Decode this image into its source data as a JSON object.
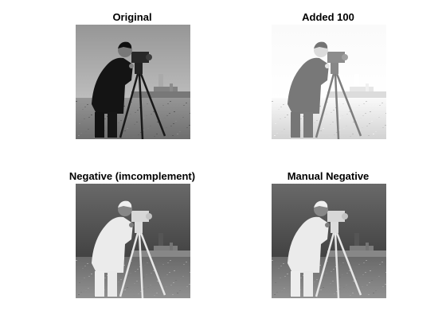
{
  "figure": {
    "panels": [
      {
        "id": "original",
        "title": "Original",
        "variant": "original"
      },
      {
        "id": "added-100",
        "title": "Added 100",
        "variant": "added"
      },
      {
        "id": "negative-imcomplement",
        "title": "Negative (imcomplement)",
        "variant": "negative"
      },
      {
        "id": "manual-negative",
        "title": "Manual Negative",
        "variant": "negative"
      }
    ]
  },
  "colors": {
    "background": "#ffffff",
    "title_text": "#000000"
  }
}
